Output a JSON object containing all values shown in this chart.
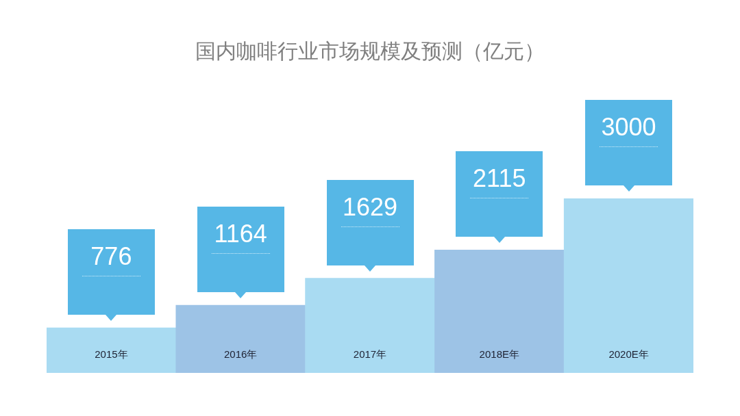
{
  "chart_data": {
    "type": "bar",
    "title": "国内咖啡行业市场规模及预测（亿元）",
    "categories": [
      "2015年",
      "2016年",
      "2017年",
      "2018E年",
      "2020E年"
    ],
    "values": [
      776,
      1164,
      1629,
      2115,
      3000
    ],
    "colors": [
      "#a9dbf2",
      "#9dc3e6",
      "#a9dbf2",
      "#9dc3e6",
      "#a9dbf2"
    ],
    "data_labels": true,
    "tick_labels": "x"
  }
}
